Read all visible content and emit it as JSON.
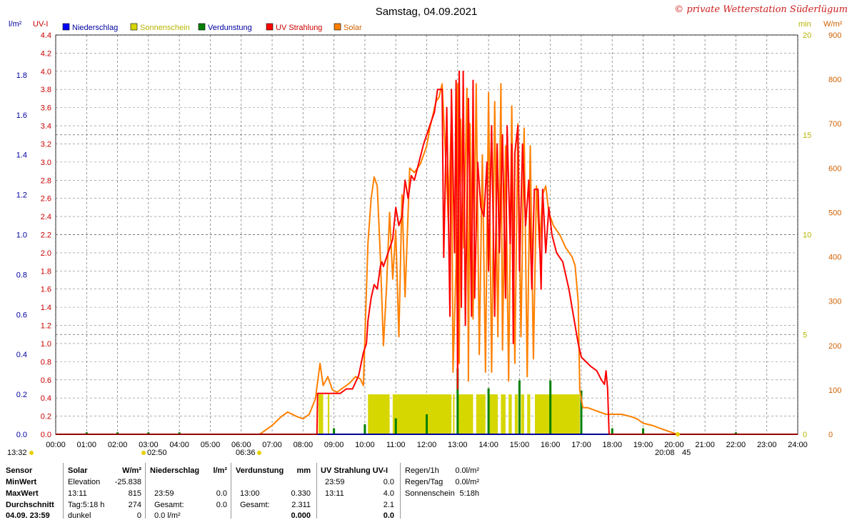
{
  "header": {
    "title": "Samstag, 04.09.2021",
    "copyright": "© private Wetterstation Süderlügum",
    "left_units": [
      "l/m²",
      "UV-I"
    ],
    "right_units": [
      "min",
      "W/m²"
    ]
  },
  "legend": [
    {
      "label": "Niederschlag",
      "color": "#0000ff"
    },
    {
      "label": "Sonnenschein",
      "color": "#d6d600"
    },
    {
      "label": "Verdunstung",
      "color": "#008000"
    },
    {
      "label": "UV Strahlung",
      "color": "#ff0000"
    },
    {
      "label": "Solar",
      "color": "#ff8000"
    }
  ],
  "colors": {
    "rain_axis": "#0000a0",
    "uv_axis": "#cc0000",
    "sun_axis": "#b5b500",
    "solar_axis": "#d06000",
    "grid": "#808080",
    "legend_label": "#0000a0"
  },
  "markers": {
    "sunrise_label": "06:36",
    "sunset_label": "20:08",
    "sunset_suffix": "45",
    "left_time": "13:32",
    "mid_time": "02:50"
  },
  "chart_data": {
    "type": "line",
    "title": "Samstag, 04.09.2021",
    "x_ticks": [
      "00:00",
      "01:00",
      "02:00",
      "03:00",
      "04:00",
      "05:00",
      "06:00",
      "07:00",
      "08:00",
      "09:00",
      "10:00",
      "11:00",
      "12:00",
      "13:00",
      "14:00",
      "15:00",
      "16:00",
      "17:00",
      "18:00",
      "19:00",
      "20:00",
      "21:00",
      "22:00",
      "23:00",
      "24:00"
    ],
    "xlim_hours": [
      0,
      24
    ],
    "axes": {
      "rain": {
        "unit": "l/m²",
        "ylim": [
          0,
          2.0
        ],
        "ticks": [
          "0.0",
          "0.2",
          "0.4",
          "0.6",
          "0.8",
          "1.0",
          "1.2",
          "1.4",
          "1.6",
          "1.8"
        ]
      },
      "uv": {
        "unit": "UV-I",
        "ylim": [
          0,
          4.4
        ],
        "ticks": [
          "0.0",
          "0.2",
          "0.4",
          "0.6",
          "0.8",
          "1.0",
          "1.2",
          "1.4",
          "1.6",
          "1.8",
          "2.0",
          "2.2",
          "2.4",
          "2.6",
          "2.8",
          "3.0",
          "3.2",
          "3.4",
          "3.6",
          "3.8",
          "4.0",
          "4.2",
          "4.4"
        ]
      },
      "sunshine": {
        "unit": "min",
        "ylim": [
          0,
          20
        ],
        "ticks": [
          "0",
          "5",
          "10",
          "15",
          "20"
        ]
      },
      "solar": {
        "unit": "W/m²",
        "ylim": [
          0,
          900
        ],
        "ticks": [
          "0",
          "100",
          "200",
          "300",
          "400",
          "500",
          "600",
          "700",
          "800",
          "900"
        ]
      }
    },
    "series": [
      {
        "name": "UV Strahlung",
        "axis": "uv",
        "color": "#ff0000",
        "points": [
          [
            0,
            0
          ],
          [
            8.45,
            0
          ],
          [
            8.47,
            0.45
          ],
          [
            9.2,
            0.45
          ],
          [
            9.4,
            0.5
          ],
          [
            9.6,
            0.5
          ],
          [
            9.8,
            0.65
          ],
          [
            9.95,
            0.9
          ],
          [
            10.05,
            1.0
          ],
          [
            10.1,
            1.25
          ],
          [
            10.2,
            1.5
          ],
          [
            10.3,
            1.65
          ],
          [
            10.4,
            1.6
          ],
          [
            10.5,
            1.85
          ],
          [
            10.55,
            1.9
          ],
          [
            10.6,
            1.85
          ],
          [
            10.75,
            2.0
          ],
          [
            10.9,
            2.15
          ],
          [
            11.0,
            2.5
          ],
          [
            11.1,
            2.3
          ],
          [
            11.2,
            2.4
          ],
          [
            11.3,
            2.8
          ],
          [
            11.4,
            2.6
          ],
          [
            11.5,
            2.85
          ],
          [
            11.6,
            2.8
          ],
          [
            11.75,
            3.0
          ],
          [
            11.9,
            3.2
          ],
          [
            12.0,
            3.3
          ],
          [
            12.1,
            3.4
          ],
          [
            12.25,
            3.55
          ],
          [
            12.35,
            3.8
          ],
          [
            12.5,
            3.8
          ],
          [
            12.55,
            1.95
          ],
          [
            12.65,
            3.6
          ],
          [
            12.75,
            1.3
          ],
          [
            12.8,
            3.8
          ],
          [
            12.9,
            2.0
          ],
          [
            12.95,
            3.9
          ],
          [
            13.0,
            0.5
          ],
          [
            13.05,
            4.0
          ],
          [
            13.12,
            1.4
          ],
          [
            13.18,
            4.0
          ],
          [
            13.25,
            1.2
          ],
          [
            13.35,
            3.7
          ],
          [
            13.45,
            1.3
          ],
          [
            13.5,
            3.9
          ],
          [
            13.55,
            1.5
          ],
          [
            13.65,
            3.0
          ],
          [
            13.75,
            2.5
          ],
          [
            13.85,
            2.4
          ],
          [
            13.95,
            3.0
          ],
          [
            14.0,
            1.8
          ],
          [
            14.1,
            3.4
          ],
          [
            14.2,
            1.3
          ],
          [
            14.28,
            3.2
          ],
          [
            14.35,
            2.0
          ],
          [
            14.45,
            3.3
          ],
          [
            14.55,
            1.5
          ],
          [
            14.6,
            3.4
          ],
          [
            14.7,
            2.1
          ],
          [
            14.75,
            3.2
          ],
          [
            14.8,
            1.0
          ],
          [
            14.85,
            3.1
          ],
          [
            14.95,
            3.4
          ],
          [
            15.0,
            1.8
          ],
          [
            15.1,
            3.2
          ],
          [
            15.2,
            2.3
          ],
          [
            15.3,
            2.8
          ],
          [
            15.4,
            1.6
          ],
          [
            15.48,
            2.7
          ],
          [
            15.6,
            2.7
          ],
          [
            15.7,
            1.6
          ],
          [
            15.75,
            2.7
          ],
          [
            15.85,
            2.0
          ],
          [
            15.95,
            2.5
          ],
          [
            16.05,
            2.2
          ],
          [
            16.2,
            2.0
          ],
          [
            16.4,
            1.9
          ],
          [
            16.6,
            1.6
          ],
          [
            16.75,
            1.3
          ],
          [
            16.9,
            1.0
          ],
          [
            17.0,
            0.85
          ],
          [
            17.15,
            0.8
          ],
          [
            17.3,
            0.75
          ],
          [
            17.5,
            0.7
          ],
          [
            17.65,
            0.6
          ],
          [
            17.75,
            0.55
          ],
          [
            17.8,
            0.7
          ],
          [
            17.85,
            0.5
          ],
          [
            17.9,
            0.0
          ],
          [
            24,
            0
          ]
        ]
      },
      {
        "name": "Solar",
        "axis": "solar",
        "color": "#ff8000",
        "points": [
          [
            0,
            0
          ],
          [
            6.6,
            0
          ],
          [
            6.8,
            10
          ],
          [
            7.0,
            20
          ],
          [
            7.3,
            40
          ],
          [
            7.5,
            50
          ],
          [
            7.8,
            40
          ],
          [
            8.0,
            35
          ],
          [
            8.2,
            45
          ],
          [
            8.4,
            80
          ],
          [
            8.55,
            160
          ],
          [
            8.65,
            110
          ],
          [
            8.8,
            130
          ],
          [
            8.95,
            100
          ],
          [
            9.1,
            95
          ],
          [
            9.3,
            105
          ],
          [
            9.5,
            115
          ],
          [
            9.7,
            130
          ],
          [
            9.85,
            125
          ],
          [
            9.95,
            110
          ],
          [
            10.1,
            430
          ],
          [
            10.2,
            530
          ],
          [
            10.3,
            580
          ],
          [
            10.4,
            560
          ],
          [
            10.5,
            400
          ],
          [
            10.6,
            200
          ],
          [
            10.7,
            330
          ],
          [
            10.8,
            500
          ],
          [
            10.9,
            350
          ],
          [
            11.0,
            460
          ],
          [
            11.1,
            220
          ],
          [
            11.2,
            540
          ],
          [
            11.3,
            310
          ],
          [
            11.45,
            600
          ],
          [
            11.6,
            590
          ],
          [
            11.8,
            610
          ],
          [
            12.0,
            650
          ],
          [
            12.1,
            690
          ],
          [
            12.2,
            720
          ],
          [
            12.3,
            750
          ],
          [
            12.4,
            760
          ],
          [
            12.5,
            790
          ],
          [
            12.6,
            640
          ],
          [
            12.7,
            480
          ],
          [
            12.8,
            720
          ],
          [
            12.85,
            140
          ],
          [
            12.95,
            380
          ],
          [
            13.0,
            790
          ],
          [
            13.05,
            160
          ],
          [
            13.1,
            710
          ],
          [
            13.2,
            420
          ],
          [
            13.3,
            780
          ],
          [
            13.35,
            120
          ],
          [
            13.4,
            700
          ],
          [
            13.5,
            260
          ],
          [
            13.6,
            790
          ],
          [
            13.7,
            180
          ],
          [
            13.8,
            630
          ],
          [
            13.9,
            140
          ],
          [
            14.0,
            770
          ],
          [
            14.1,
            140
          ],
          [
            14.2,
            750
          ],
          [
            14.3,
            220
          ],
          [
            14.4,
            790
          ],
          [
            14.45,
            190
          ],
          [
            14.55,
            650
          ],
          [
            14.65,
            120
          ],
          [
            14.75,
            740
          ],
          [
            14.85,
            160
          ],
          [
            14.95,
            700
          ],
          [
            15.05,
            220
          ],
          [
            15.15,
            690
          ],
          [
            15.25,
            130
          ],
          [
            15.35,
            650
          ],
          [
            15.45,
            170
          ],
          [
            15.55,
            560
          ],
          [
            15.65,
            420
          ],
          [
            15.75,
            540
          ],
          [
            15.85,
            560
          ],
          [
            15.95,
            500
          ],
          [
            16.1,
            470
          ],
          [
            16.3,
            450
          ],
          [
            16.5,
            420
          ],
          [
            16.7,
            400
          ],
          [
            16.8,
            380
          ],
          [
            16.9,
            300
          ],
          [
            16.95,
            100
          ],
          [
            17.05,
            60
          ],
          [
            17.2,
            60
          ],
          [
            17.4,
            55
          ],
          [
            17.6,
            50
          ],
          [
            17.8,
            45
          ],
          [
            18.0,
            45
          ],
          [
            18.3,
            45
          ],
          [
            18.6,
            40
          ],
          [
            18.8,
            35
          ],
          [
            19.0,
            25
          ],
          [
            19.3,
            20
          ],
          [
            19.6,
            12
          ],
          [
            19.9,
            5
          ],
          [
            20.1,
            0
          ],
          [
            24,
            0
          ]
        ]
      },
      {
        "name": "Sonnenschein",
        "axis": "sunshine",
        "color": "#d6d600",
        "intervals": [
          [
            8.5,
            8.65
          ],
          [
            8.8,
            8.85
          ],
          [
            10.1,
            10.8
          ],
          [
            10.9,
            12.8
          ],
          [
            12.85,
            12.9
          ],
          [
            13.0,
            13.5
          ],
          [
            13.6,
            13.9
          ],
          [
            14.0,
            14.3
          ],
          [
            14.4,
            14.55
          ],
          [
            14.65,
            14.75
          ],
          [
            14.85,
            14.95
          ],
          [
            15.05,
            15.15
          ],
          [
            15.25,
            15.35
          ],
          [
            15.5,
            16.95
          ]
        ],
        "level": 2
      },
      {
        "name": "Verdunstung",
        "axis": "rain",
        "color": "#008000",
        "points": [
          [
            1.0,
            0.01
          ],
          [
            2.0,
            0.01
          ],
          [
            3.0,
            0.01
          ],
          [
            4.0,
            0.01
          ],
          [
            9.0,
            0.03
          ],
          [
            10.0,
            0.05
          ],
          [
            11.0,
            0.08
          ],
          [
            12.0,
            0.1
          ],
          [
            13.0,
            0.33
          ],
          [
            14.0,
            0.23
          ],
          [
            15.0,
            0.27
          ],
          [
            16.0,
            0.27
          ],
          [
            17.0,
            0.22
          ],
          [
            18.0,
            0.03
          ],
          [
            19.0,
            0.03
          ],
          [
            22.0,
            0.01
          ]
        ]
      },
      {
        "name": "Niederschlag",
        "axis": "rain",
        "color": "#0000ff",
        "points": [
          [
            0,
            0
          ],
          [
            24,
            0
          ]
        ]
      }
    ]
  },
  "stats": {
    "row_labels": [
      "Sensor",
      "MinWert",
      "MaxWert",
      "Durchschnitt",
      "04.09. 23:59"
    ],
    "solar": {
      "header": "Solar",
      "unit": "W/m²",
      "rows": [
        [
          "Elevation",
          "-25.838"
        ],
        [
          "13:11",
          "815"
        ],
        [
          "Tag:5:18 h",
          "274"
        ],
        [
          "dunkel",
          "0"
        ]
      ]
    },
    "rain": {
      "header": "Niederschlag",
      "unit": "l/m²",
      "rows": [
        [
          "",
          ""
        ],
        [
          "23:59",
          "0.0"
        ],
        [
          "Gesamt:",
          "0.0"
        ],
        [
          "0.0 l/m²",
          ""
        ]
      ]
    },
    "evap": {
      "header": "Verdunstung",
      "unit": "mm",
      "rows": [
        [
          "",
          ""
        ],
        [
          "13:00",
          "0.330"
        ],
        [
          "Gesamt:",
          "2.311"
        ],
        [
          "",
          "0.000"
        ]
      ]
    },
    "uv": {
      "header": "UV Strahlung UV-I",
      "rows": [
        [
          "23:59",
          "0.0"
        ],
        [
          "13:11",
          "4.0"
        ],
        [
          "",
          "2.1"
        ],
        [
          "",
          "0.0"
        ]
      ]
    },
    "rates": [
      [
        "Regen/1h",
        "0.0l/m²"
      ],
      [
        "Regen/Tag",
        "0.0l/m²"
      ],
      [
        "Sonnenschein",
        "5:18h"
      ]
    ]
  }
}
